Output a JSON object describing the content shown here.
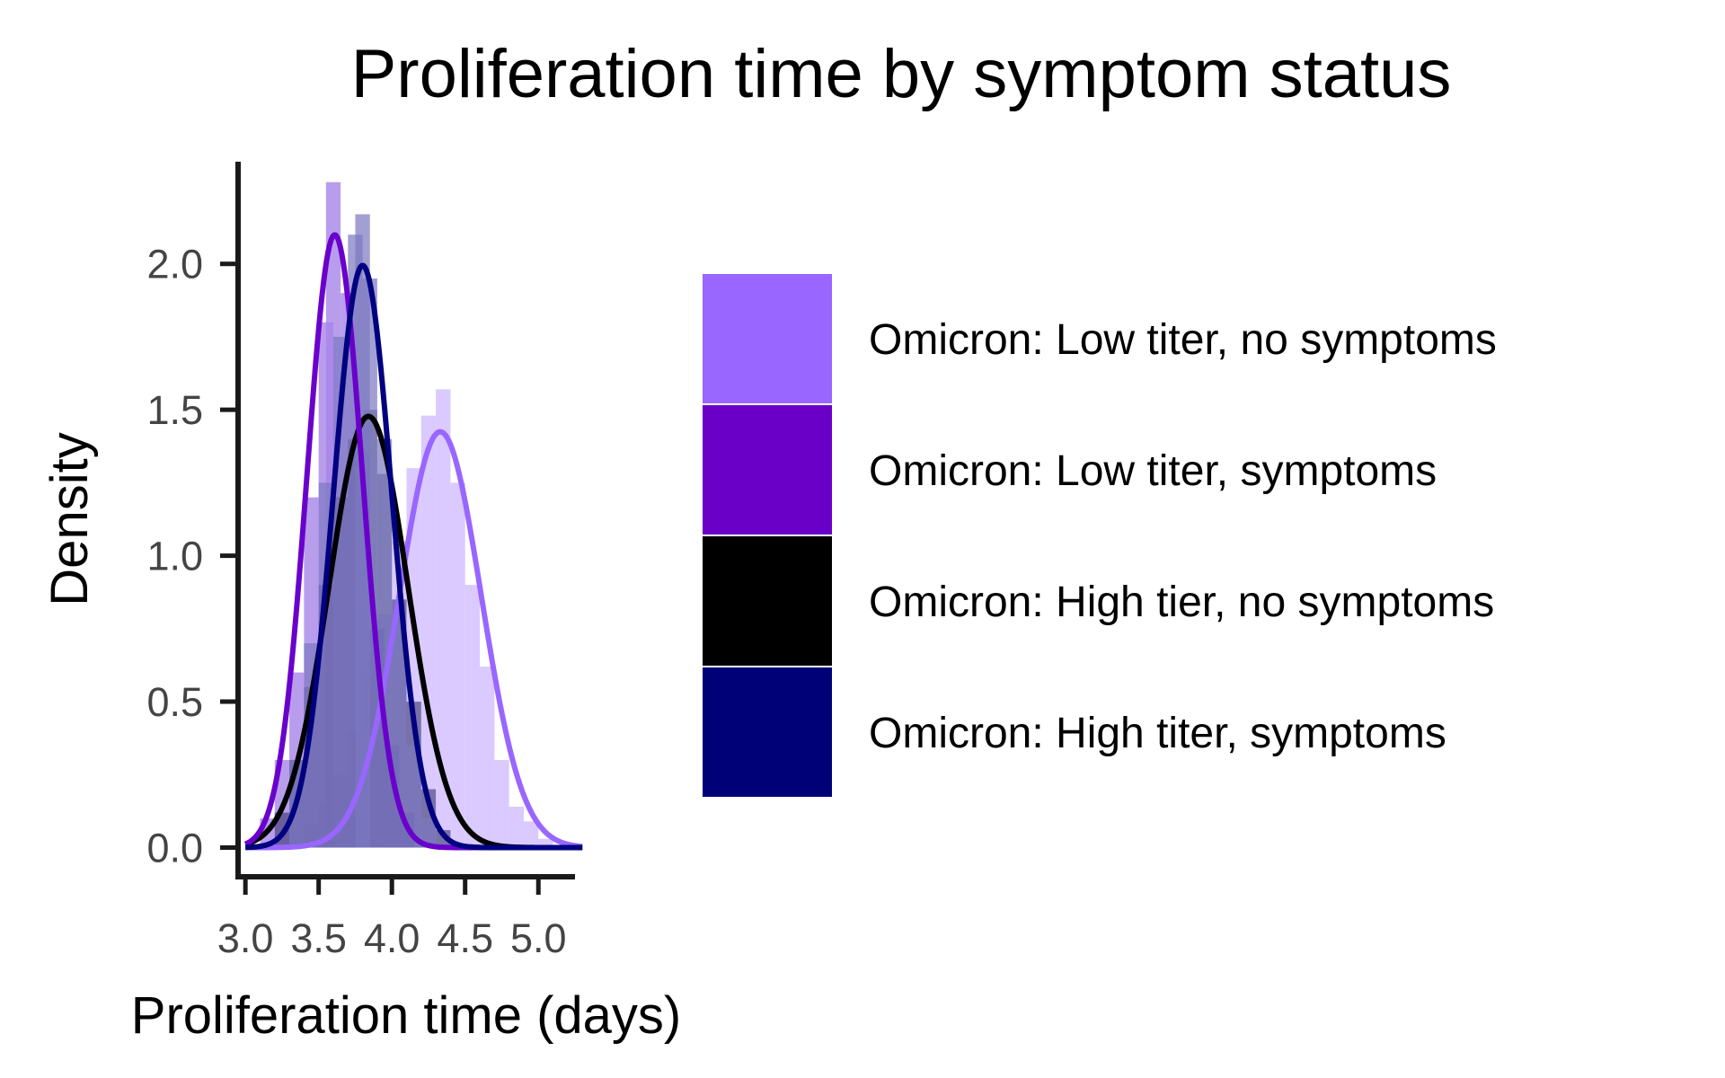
{
  "chart_data": {
    "type": "histogram-density",
    "title": "Proliferation time by symptom status",
    "xlabel": "Proliferation time (days)",
    "ylabel": "Density",
    "xlim": [
      2.95,
      5.25
    ],
    "ylim": [
      -0.1,
      2.35
    ],
    "x_ticks": [
      3.0,
      3.5,
      4.0,
      4.5,
      5.0
    ],
    "x_tick_labels": [
      "3.0",
      "3.5",
      "4.0",
      "4.5",
      "5.0"
    ],
    "y_ticks": [
      0.0,
      0.5,
      1.0,
      1.5,
      2.0
    ],
    "y_tick_labels": [
      "0.0",
      "0.5",
      "1.0",
      "1.5",
      "2.0"
    ],
    "grid": false,
    "legend_position": "right",
    "series": [
      {
        "name": "Omicron: Low titer, no symptoms",
        "color": "#9966ff",
        "curve_color": "#9966ff",
        "hist_color": "#cdb8ff",
        "hist_opacity": 0.75,
        "density_mean": 4.33,
        "density_sd": 0.28,
        "bins": [
          {
            "x": 3.35,
            "d": 0.02
          },
          {
            "x": 3.45,
            "d": 0.08
          },
          {
            "x": 3.55,
            "d": 0.15
          },
          {
            "x": 3.65,
            "d": 0.25
          },
          {
            "x": 3.75,
            "d": 0.4
          },
          {
            "x": 3.85,
            "d": 0.6
          },
          {
            "x": 3.95,
            "d": 0.8
          },
          {
            "x": 4.05,
            "d": 1.05
          },
          {
            "x": 4.15,
            "d": 1.3
          },
          {
            "x": 4.25,
            "d": 1.48
          },
          {
            "x": 4.35,
            "d": 1.57
          },
          {
            "x": 4.45,
            "d": 1.25
          },
          {
            "x": 4.55,
            "d": 0.9
          },
          {
            "x": 4.65,
            "d": 0.62
          },
          {
            "x": 4.75,
            "d": 0.3
          },
          {
            "x": 4.85,
            "d": 0.14
          },
          {
            "x": 4.95,
            "d": 0.09
          },
          {
            "x": 5.05,
            "d": 0.03
          }
        ]
      },
      {
        "name": "Omicron: Low titer, symptoms",
        "color": "#6a00c8",
        "curve_color": "#6a00cc",
        "hist_color": "#a884e8",
        "hist_opacity": 0.8,
        "density_mean": 3.61,
        "density_sd": 0.19,
        "bins": [
          {
            "x": 3.15,
            "d": 0.1
          },
          {
            "x": 3.25,
            "d": 0.3
          },
          {
            "x": 3.35,
            "d": 0.6
          },
          {
            "x": 3.45,
            "d": 1.2
          },
          {
            "x": 3.55,
            "d": 1.8
          },
          {
            "x": 3.6,
            "d": 2.28
          },
          {
            "x": 3.7,
            "d": 1.9
          },
          {
            "x": 3.8,
            "d": 1.35
          },
          {
            "x": 3.9,
            "d": 0.75
          },
          {
            "x": 4.0,
            "d": 0.35
          },
          {
            "x": 4.1,
            "d": 0.12
          }
        ]
      },
      {
        "name": "Omicron: High tier, no symptoms",
        "color": "#000000",
        "curve_color": "#000000",
        "hist_color": "#2a2a60",
        "hist_opacity": 0.55,
        "density_mean": 3.84,
        "density_sd": 0.27,
        "bins": [
          {
            "x": 3.25,
            "d": 0.12
          },
          {
            "x": 3.35,
            "d": 0.3
          },
          {
            "x": 3.45,
            "d": 0.55
          },
          {
            "x": 3.55,
            "d": 0.9
          },
          {
            "x": 3.65,
            "d": 1.2
          },
          {
            "x": 3.75,
            "d": 1.4
          },
          {
            "x": 3.85,
            "d": 1.5
          },
          {
            "x": 3.95,
            "d": 1.28
          },
          {
            "x": 4.05,
            "d": 0.85
          },
          {
            "x": 4.15,
            "d": 0.5
          },
          {
            "x": 4.25,
            "d": 0.2
          },
          {
            "x": 4.35,
            "d": 0.06
          }
        ]
      },
      {
        "name": "Omicron: High titer, symptoms",
        "color": "#000077",
        "curve_color": "#000080",
        "hist_color": "#7a78c0",
        "hist_opacity": 0.7,
        "density_mean": 3.8,
        "density_sd": 0.2,
        "bins": [
          {
            "x": 3.35,
            "d": 0.3
          },
          {
            "x": 3.45,
            "d": 0.7
          },
          {
            "x": 3.55,
            "d": 1.25
          },
          {
            "x": 3.65,
            "d": 1.75
          },
          {
            "x": 3.75,
            "d": 2.1
          },
          {
            "x": 3.8,
            "d": 2.17
          },
          {
            "x": 3.85,
            "d": 1.95
          },
          {
            "x": 3.95,
            "d": 1.4
          },
          {
            "x": 4.05,
            "d": 0.8
          },
          {
            "x": 4.15,
            "d": 0.35
          },
          {
            "x": 4.25,
            "d": 0.1
          }
        ]
      }
    ]
  }
}
